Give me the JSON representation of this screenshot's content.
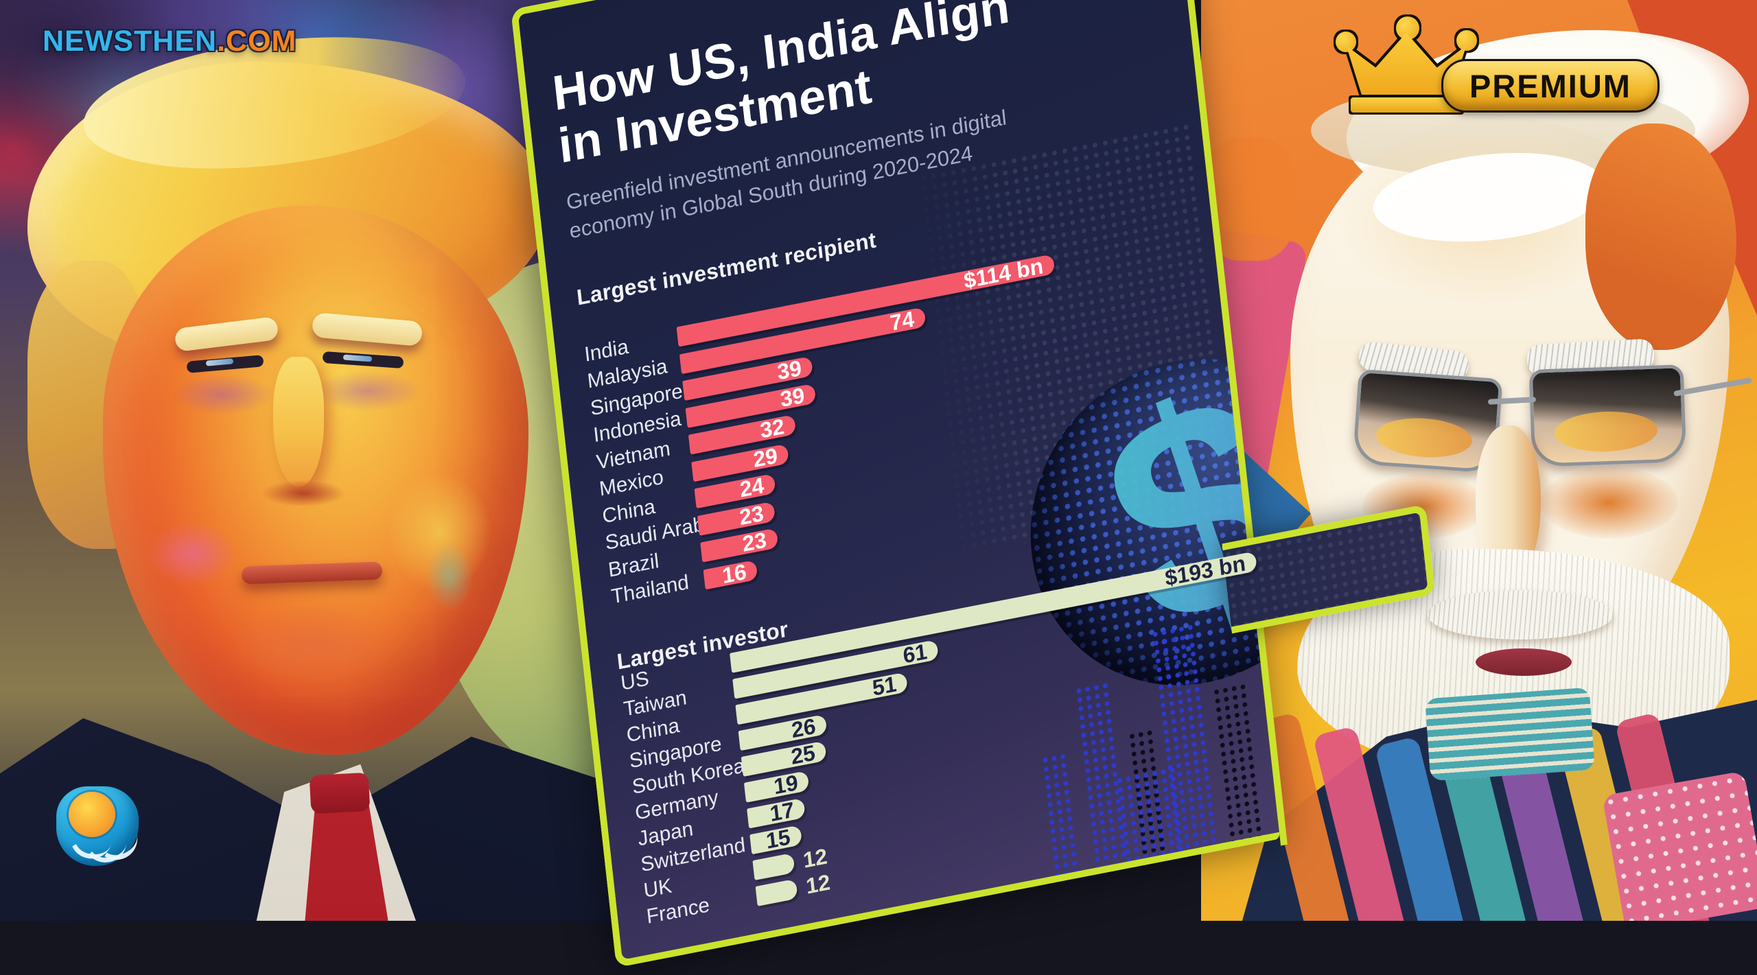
{
  "branding": {
    "site_name_blue": "NEWSTHEN",
    "site_name_orange": ".COM",
    "logo_icon": "hand-holding-sun-icon"
  },
  "premium_badge": {
    "label": "PREMIUM",
    "icon": "crown-icon"
  },
  "panel": {
    "title_line1": "How US, India Align",
    "title_line2": "in Investment",
    "subtitle_line1": "Greenfield investment announcements in digital",
    "subtitle_line2": "economy in Global South during 2020-2024",
    "globe_dollar_glyph": "$"
  },
  "colors": {
    "panel_border_lime": "#cbe32d",
    "panel_navy": "#1f2446",
    "recipient_bar_pink": "#f4596a",
    "investor_bar_cream": "#dfe8c4",
    "value_text_on_pink": "#ffffff",
    "value_text_on_cream": "#1d2342",
    "title_white": "#ffffff",
    "subtitle_gray": "#a7aec8",
    "site_blue": "#35b6ea",
    "site_orange": "#f5831f",
    "premium_gold": "#f3bb2c"
  },
  "chart_data": [
    {
      "type": "bar",
      "orientation": "horizontal",
      "title": "Largest investment recipient",
      "unit": "US$ billion",
      "categories": [
        "India",
        "Malaysia",
        "Singapore",
        "Indonesia",
        "Vietnam",
        "Mexico",
        "China",
        "Saudi Arabia",
        "Brazil",
        "Thailand"
      ],
      "values": [
        114,
        74,
        39,
        39,
        32,
        29,
        24,
        23,
        23,
        16
      ],
      "value_labels": [
        "$114 bn",
        "74",
        "39",
        "39",
        "32",
        "29",
        "24",
        "23",
        "23",
        "16"
      ],
      "bar_color": "#f4596a",
      "value_inside_color": "#ffffff",
      "xlim": [
        0,
        114
      ],
      "grid": false,
      "legend": false
    },
    {
      "type": "bar",
      "orientation": "horizontal",
      "title": "Largest investor",
      "unit": "US$ billion",
      "categories": [
        "US",
        "Taiwan",
        "China",
        "Singapore",
        "South Korea",
        "Germany",
        "Japan",
        "Switzerland",
        "UK",
        "France"
      ],
      "values": [
        193,
        61,
        51,
        26,
        25,
        19,
        17,
        15,
        12,
        12
      ],
      "value_labels": [
        "$193 bn",
        "61",
        "51",
        "26",
        "25",
        "19",
        "17",
        "15",
        "12",
        "12"
      ],
      "bar_color": "#dfe8c4",
      "value_inside_color": "#1d2342",
      "xlim": [
        0,
        193
      ],
      "grid": false,
      "legend": false
    }
  ]
}
